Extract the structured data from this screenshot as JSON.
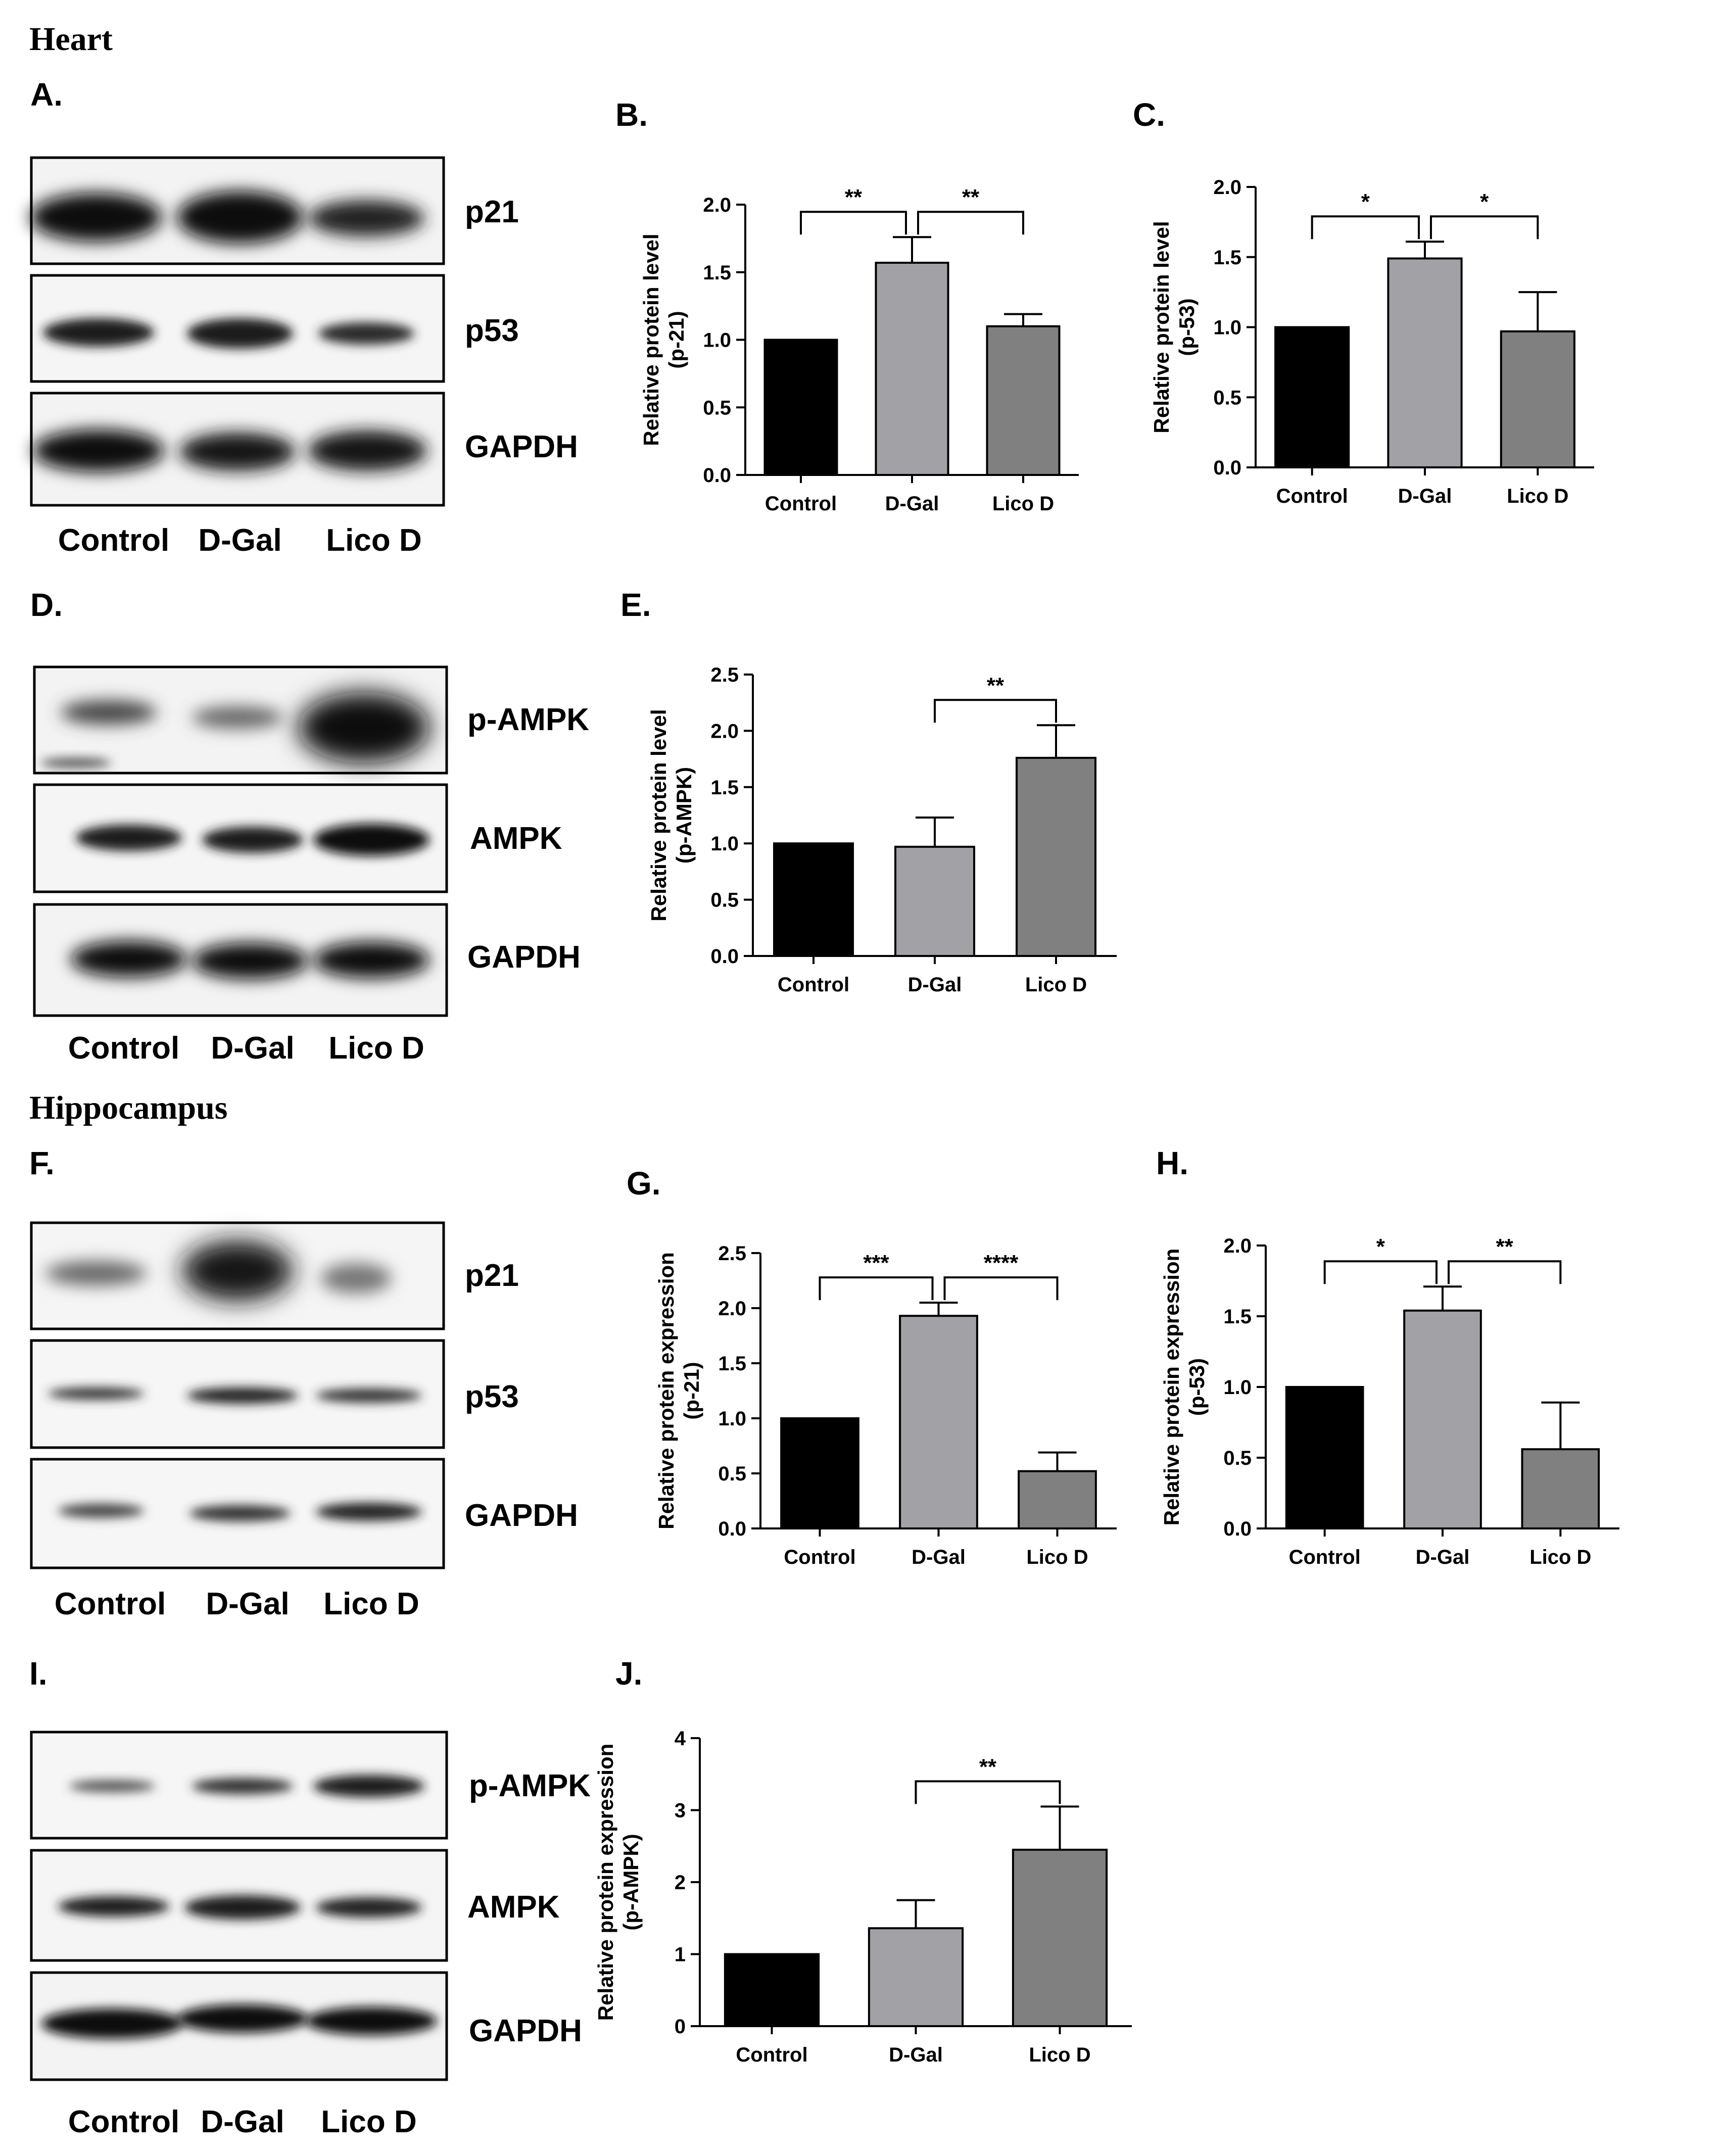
{
  "sections": {
    "heart": "Heart",
    "hippocampus": "Hippocampus"
  },
  "panels": {
    "A": "A.",
    "B": "B.",
    "C": "C.",
    "D": "D.",
    "E": "E.",
    "F": "F.",
    "G": "G.",
    "H": "H.",
    "I": "I.",
    "J": "J."
  },
  "blots": [
    {
      "id": "A",
      "bands": [
        "p21",
        "p53",
        "GAPDH"
      ],
      "lanes": [
        "Control",
        "D-Gal",
        "Lico D"
      ]
    },
    {
      "id": "D",
      "bands": [
        "p-AMPK",
        "AMPK",
        "GAPDH"
      ],
      "lanes": [
        "Control",
        "D-Gal",
        "Lico D"
      ]
    },
    {
      "id": "F",
      "bands": [
        "p21",
        "p53",
        "GAPDH"
      ],
      "lanes": [
        "Control",
        "D-Gal",
        "Lico D"
      ]
    },
    {
      "id": "I",
      "bands": [
        "p-AMPK",
        "AMPK",
        "GAPDH"
      ],
      "lanes": [
        "Control",
        "D-Gal",
        "Lico D"
      ]
    }
  ],
  "chart_data": [
    {
      "id": "B",
      "type": "bar",
      "categories": [
        "Control",
        "D-Gal",
        "Lico D"
      ],
      "values": [
        1.0,
        1.57,
        1.1
      ],
      "errors": [
        0,
        0.19,
        0.09
      ],
      "ylim": [
        0,
        2.0
      ],
      "yticks": [
        "0.0",
        "0.5",
        "1.0",
        "1.5",
        "2.0"
      ],
      "ylabel": [
        "Relative protein level",
        "(p-21)"
      ],
      "xlabel": "",
      "title": "",
      "significance": [
        {
          "from": 0,
          "to": 1,
          "label": "**"
        },
        {
          "from": 1,
          "to": 2,
          "label": "**"
        }
      ],
      "colors": [
        "#000000",
        "#a2a1a6",
        "#808080"
      ]
    },
    {
      "id": "C",
      "type": "bar",
      "categories": [
        "Control",
        "D-Gal",
        "Lico D"
      ],
      "values": [
        1.0,
        1.49,
        0.97
      ],
      "errors": [
        0,
        0.12,
        0.28
      ],
      "ylim": [
        0,
        2.0
      ],
      "yticks": [
        "0.0",
        "0.5",
        "1.0",
        "1.5",
        "2.0"
      ],
      "ylabel": [
        "Relative protein level",
        "(p-53)"
      ],
      "xlabel": "",
      "title": "",
      "significance": [
        {
          "from": 0,
          "to": 1,
          "label": "*"
        },
        {
          "from": 1,
          "to": 2,
          "label": "*"
        }
      ],
      "colors": [
        "#000000",
        "#a2a1a6",
        "#808080"
      ]
    },
    {
      "id": "E",
      "type": "bar",
      "categories": [
        "Control",
        "D-Gal",
        "Lico D"
      ],
      "values": [
        1.0,
        0.97,
        1.76
      ],
      "errors": [
        0,
        0.26,
        0.29
      ],
      "ylim": [
        0,
        2.5
      ],
      "yticks": [
        "0.0",
        "0.5",
        "1.0",
        "1.5",
        "2.0",
        "2.5"
      ],
      "ylabel": [
        "Relative protein level",
        "(p-AMPK)"
      ],
      "xlabel": "",
      "title": "",
      "significance": [
        {
          "from": 1,
          "to": 2,
          "label": "**"
        }
      ],
      "colors": [
        "#000000",
        "#a2a1a6",
        "#808080"
      ]
    },
    {
      "id": "G",
      "type": "bar",
      "categories": [
        "Control",
        "D-Gal",
        "Lico D"
      ],
      "values": [
        1.0,
        1.93,
        0.52
      ],
      "errors": [
        0,
        0.12,
        0.17
      ],
      "ylim": [
        0,
        2.5
      ],
      "yticks": [
        "0.0",
        "0.5",
        "1.0",
        "1.5",
        "2.0",
        "2.5"
      ],
      "ylabel": [
        "Relative protein expression",
        "(p-21)"
      ],
      "xlabel": "",
      "title": "",
      "significance": [
        {
          "from": 0,
          "to": 1,
          "label": "***"
        },
        {
          "from": 1,
          "to": 2,
          "label": "****"
        }
      ],
      "colors": [
        "#000000",
        "#a2a1a6",
        "#808080"
      ]
    },
    {
      "id": "H",
      "type": "bar",
      "categories": [
        "Control",
        "D-Gal",
        "Lico D"
      ],
      "values": [
        1.0,
        1.54,
        0.56
      ],
      "errors": [
        0,
        0.17,
        0.33
      ],
      "ylim": [
        0,
        2.0
      ],
      "yticks": [
        "0.0",
        "0.5",
        "1.0",
        "1.5",
        "2.0"
      ],
      "ylabel": [
        "Relative protein expression",
        "(p-53)"
      ],
      "xlabel": "",
      "title": "",
      "significance": [
        {
          "from": 0,
          "to": 1,
          "label": "*"
        },
        {
          "from": 1,
          "to": 2,
          "label": "**"
        }
      ],
      "colors": [
        "#000000",
        "#a2a1a6",
        "#808080"
      ]
    },
    {
      "id": "J",
      "type": "bar",
      "categories": [
        "Control",
        "D-Gal",
        "Lico D"
      ],
      "values": [
        1.0,
        1.36,
        2.45
      ],
      "errors": [
        0,
        0.39,
        0.6
      ],
      "ylim": [
        0,
        4
      ],
      "yticks": [
        "0",
        "1",
        "2",
        "3",
        "4"
      ],
      "ylabel": [
        "Relative protein expression",
        "(p-AMPK)"
      ],
      "xlabel": "",
      "title": "",
      "significance": [
        {
          "from": 1,
          "to": 2,
          "label": "**"
        }
      ],
      "colors": [
        "#000000",
        "#a2a1a6",
        "#808080"
      ]
    }
  ]
}
